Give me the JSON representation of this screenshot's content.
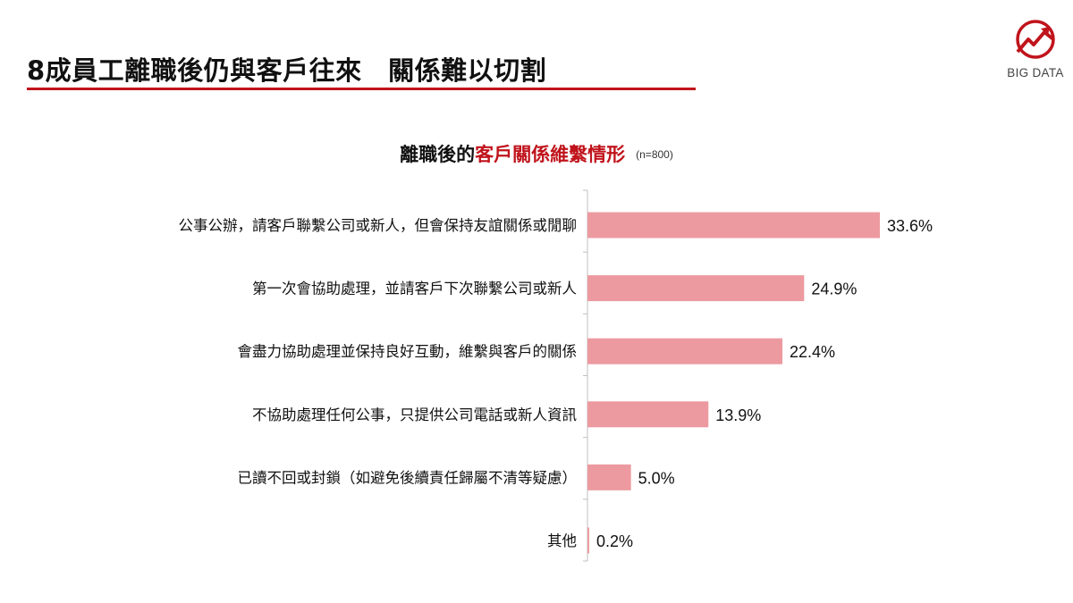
{
  "slide": {
    "title": "8成員工離職後仍與客戶往來　關係難以切割",
    "logo_text": "BIG DATA",
    "accent_color": "#c0141c"
  },
  "chart_heading": {
    "part1": "離職後的",
    "part2": "客戶關係維繫情形",
    "n_label": "(n=800)"
  },
  "chart_data": {
    "type": "bar",
    "orientation": "horizontal",
    "categories": [
      "公事公辦，請客戶聯繫公司或新人，但會保持友誼關係或閒聊",
      "第一次會協助處理，並請客戶下次聯繫公司或新人",
      "會盡力協助處理並保持良好互動，維繫與客戶的關係",
      "不協助處理任何公事，只提供公司電話或新人資訊",
      "已讀不回或封鎖（如避免後續責任歸屬不清等疑慮）",
      "其他"
    ],
    "values": [
      33.6,
      24.9,
      22.4,
      13.9,
      5.0,
      0.2
    ],
    "value_labels": [
      "33.6%",
      "24.9%",
      "22.4%",
      "13.9%",
      "5.0%",
      "0.2%"
    ],
    "unit": "%",
    "bar_color": "#ec9aa0",
    "grid": false,
    "legend": "none"
  }
}
